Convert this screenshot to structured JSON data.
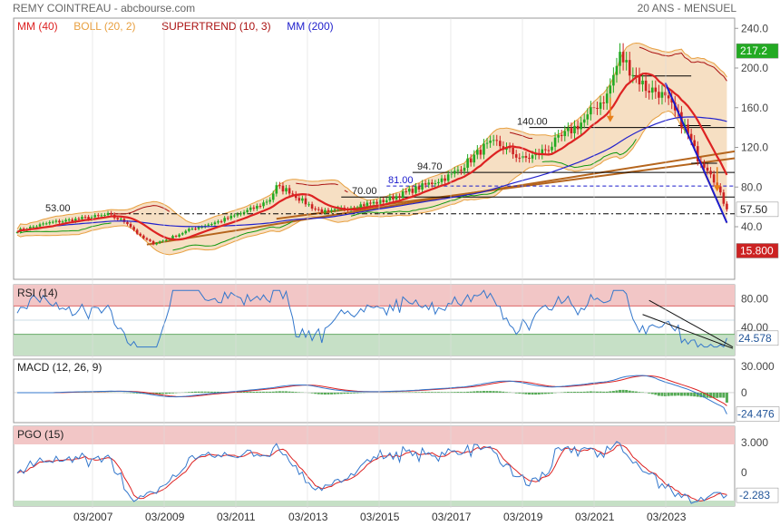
{
  "header": {
    "left": "REMY COINTREAU - abcbourse.com",
    "right": "20 ANS - MENSUEL"
  },
  "legend": [
    {
      "label": "MM (40)",
      "color": "#dd2222"
    },
    {
      "label": "BOLL (20, 2)",
      "color": "#e8a040"
    },
    {
      "label": "SUPERTREND (10, 3)",
      "color": "#aa1111"
    },
    {
      "label": "MM (200)",
      "color": "#2222cc"
    }
  ],
  "x_ticks": [
    "03/2007",
    "03/2009",
    "03/2011",
    "03/2013",
    "03/2015",
    "03/2017",
    "03/2019",
    "03/2021",
    "03/2023"
  ],
  "colors": {
    "candle_up": "#22aa22",
    "candle_down": "#cc2222",
    "boll_fill": "#f5d9b8",
    "boll_line": "#e8a040",
    "mm40": "#dd2222",
    "mm200": "#2222cc",
    "supertrend_up": "#119911",
    "supertrend_down": "#aa1111",
    "trendline": "#b5651d",
    "rsi_line": "#3377cc",
    "macd_line": "#3377cc",
    "signal_line": "#dd2222",
    "hist": "#55aa55",
    "ob_zone": "#f2c6c6",
    "os_zone": "#c6e0c6"
  },
  "price_panel": {
    "y_ticks": [
      "240.0",
      "200.0",
      "160.0",
      "120.0",
      "80.0",
      "40.0"
    ],
    "badges": [
      {
        "text": "217.2",
        "bg": "#22aa22",
        "fg": "#ffffff",
        "value": 217.2
      },
      {
        "text": "57.50",
        "bg": "#ffffff",
        "fg": "#222222",
        "value": 57.5
      },
      {
        "text": "15.800",
        "bg": "#cc2222",
        "fg": "#ffffff",
        "value": 15.8
      }
    ],
    "level_labels": [
      {
        "text": "53.00",
        "value": 53
      },
      {
        "text": "70.00",
        "value": 70
      },
      {
        "text": "81.00",
        "value": 81
      },
      {
        "text": "94.70",
        "value": 94.7
      },
      {
        "text": "140.00",
        "value": 140
      }
    ]
  },
  "rsi_panel": {
    "title": "RSI (14)",
    "y_ticks": [
      "80.00",
      "40.00"
    ],
    "last": "24.578"
  },
  "macd_panel": {
    "title": "MACD (12, 26, 9)",
    "y_ticks": [
      "30.000",
      "0"
    ],
    "last": "-24.476"
  },
  "pgo_panel": {
    "title": "PGO (15)",
    "y_ticks": [
      "3.000",
      "0"
    ],
    "last": "-2.283"
  }
}
